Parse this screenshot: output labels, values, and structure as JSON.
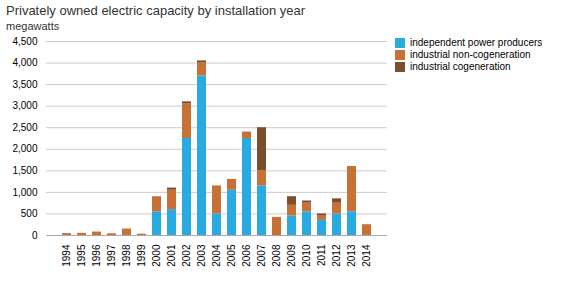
{
  "chart_data": {
    "type": "bar",
    "stacked": true,
    "title": "Privately owned electric capacity by installation year",
    "subtitle": "megawatts",
    "categories": [
      "1994",
      "1995",
      "1996",
      "1997",
      "1998",
      "1999",
      "2000",
      "2001",
      "2002",
      "2003",
      "2004",
      "2005",
      "2006",
      "2007",
      "2008",
      "2009",
      "2010",
      "2011",
      "2012",
      "2013",
      "2014"
    ],
    "series": [
      {
        "name": "independent power producers",
        "color": "#29ABE2",
        "values": [
          0,
          0,
          0,
          0,
          0,
          0,
          550,
          600,
          2250,
          3700,
          500,
          1050,
          2250,
          1150,
          0,
          450,
          550,
          350,
          500,
          550,
          0
        ]
      },
      {
        "name": "industrial non-cogeneration",
        "color": "#C87137",
        "values": [
          20,
          50,
          80,
          40,
          150,
          30,
          350,
          450,
          800,
          300,
          650,
          250,
          150,
          350,
          420,
          250,
          200,
          100,
          250,
          1050,
          250
        ]
      },
      {
        "name": "industrial cogeneration",
        "color": "#7B4F2E",
        "values": [
          20,
          0,
          0,
          0,
          0,
          0,
          0,
          50,
          50,
          50,
          0,
          0,
          0,
          1000,
          0,
          200,
          50,
          50,
          100,
          0,
          0
        ]
      }
    ],
    "ylim": [
      0,
      4500
    ],
    "yticks": [
      0,
      500,
      {
        "value": 1000,
        "label": "1,000"
      },
      {
        "value": 1500,
        "label": "1,500"
      },
      {
        "value": 2000,
        "label": "2,000"
      },
      {
        "value": 2500,
        "label": "2,500"
      },
      {
        "value": 3000,
        "label": "3,000"
      },
      {
        "value": 3500,
        "label": "3,500"
      },
      {
        "value": 4000,
        "label": "4,000"
      },
      {
        "value": 4500,
        "label": "4,500"
      }
    ],
    "grid": true,
    "legend": "upper right"
  }
}
